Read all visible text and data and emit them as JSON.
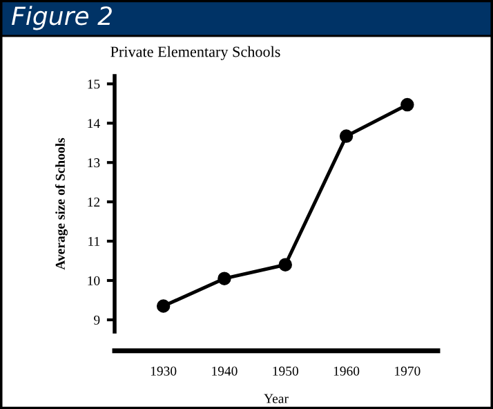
{
  "chart_data": {
    "type": "line",
    "title": "Private Elementary Schools",
    "xlabel": "Year",
    "ylabel": "Average size of Schools",
    "annotations": [
      "Figure 2"
    ],
    "x": [
      1930,
      1940,
      1950,
      1960,
      1970
    ],
    "series": [
      {
        "color": "#000000",
        "values": [
          9.35,
          10.05,
          10.4,
          13.67,
          14.47
        ]
      }
    ],
    "xlim": [
      1922,
      1975
    ],
    "xticks": [
      1930,
      1940,
      1950,
      1960,
      1970
    ],
    "ylim": [
      8.7,
      15.2
    ],
    "yticks": [
      9,
      10,
      11,
      12,
      13,
      14,
      15
    ],
    "marker": "circle",
    "line_style": "solid",
    "grid": false,
    "legend": false
  }
}
